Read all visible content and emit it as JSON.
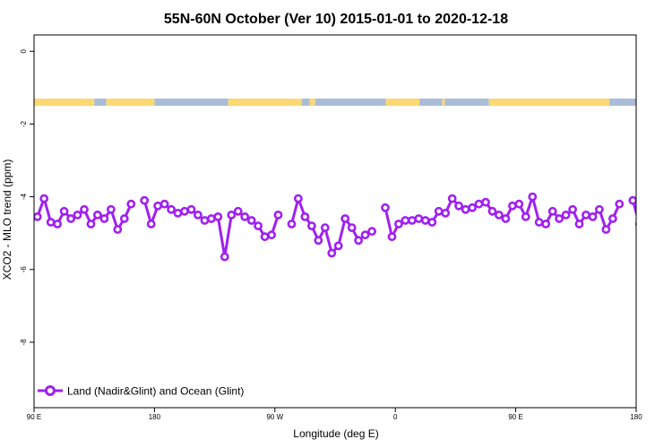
{
  "chart_data": {
    "type": "line",
    "title": "55N-60N October (Ver 10)   2015-01-01 to 2020-12-18",
    "xlabel": "Longitude (deg E)",
    "ylabel": "XCO2 - MLO trend (ppm)",
    "x_unit": "degrees east, unwrapped starting at 90 E (180 = 180, 270 = 90 W, 360 = 0, 450 = 90 E, 540 = 180)",
    "xlim": [
      90,
      540
    ],
    "ylim": [
      -9.8,
      0.45
    ],
    "x_ticks": [
      {
        "value": 90,
        "label": "90 E"
      },
      {
        "value": 180,
        "label": "180"
      },
      {
        "value": 270,
        "label": "90 W"
      },
      {
        "value": 360,
        "label": "0"
      },
      {
        "value": 450,
        "label": "90 E"
      },
      {
        "value": 540,
        "label": "180"
      }
    ],
    "y_ticks": [
      {
        "value": 0,
        "label": "0"
      },
      {
        "value": -2,
        "label": "-2"
      },
      {
        "value": -4,
        "label": "-4"
      },
      {
        "value": -6,
        "label": "-6"
      },
      {
        "value": -8,
        "label": "-8"
      }
    ],
    "grid": false,
    "legend_position": "bottom-left",
    "colors": {
      "series": "#a020f0",
      "ocean": "#a9bcd8",
      "land": "#fbd874"
    },
    "land_ocean_band": {
      "y_range": [
        -1.3,
        -1.5
      ],
      "description_colors": {
        "land": "#fbd874",
        "ocean": "#a9bcd8"
      },
      "land_segments_lon": [
        [
          90,
          135
        ],
        [
          144,
          180
        ],
        [
          235,
          290
        ],
        [
          296,
          300
        ],
        [
          353,
          378
        ],
        [
          395,
          397
        ],
        [
          430,
          520
        ]
      ],
      "ocean_segments_lon": [
        [
          135,
          144
        ],
        [
          180,
          235
        ],
        [
          290,
          296
        ],
        [
          300,
          353
        ],
        [
          378,
          395
        ],
        [
          397,
          430
        ],
        [
          520,
          540
        ]
      ]
    },
    "series": [
      {
        "name": "Land (Nadir&Glint) and Ocean (Glint)",
        "segments": [
          [
            [
              92.5,
              -4.55
            ],
            [
              97.5,
              -4.05
            ],
            [
              102.5,
              -4.7
            ],
            [
              107.5,
              -4.75
            ],
            [
              112.5,
              -4.4
            ],
            [
              117.5,
              -4.6
            ],
            [
              122.5,
              -4.5
            ],
            [
              127.5,
              -4.35
            ],
            [
              132.5,
              -4.75
            ],
            [
              137.5,
              -4.5
            ],
            [
              142.5,
              -4.6
            ],
            [
              147.5,
              -4.35
            ],
            [
              152.5,
              -4.9
            ],
            [
              157.5,
              -4.6
            ],
            [
              162.5,
              -4.2
            ]
          ],
          [
            [
              172.5,
              -4.1
            ],
            [
              177.5,
              -4.75
            ],
            [
              182.5,
              -4.25
            ],
            [
              187.5,
              -4.2
            ],
            [
              192.5,
              -4.35
            ],
            [
              197.5,
              -4.45
            ],
            [
              202.5,
              -4.4
            ],
            [
              207.5,
              -4.35
            ],
            [
              212.5,
              -4.5
            ],
            [
              217.5,
              -4.65
            ],
            [
              222.5,
              -4.6
            ]
          ],
          [
            [
              227.5,
              -4.55
            ],
            [
              232.5,
              -5.65
            ],
            [
              237.5,
              -4.5
            ],
            [
              242.5,
              -4.4
            ],
            [
              247.5,
              -4.55
            ],
            [
              252.5,
              -4.65
            ],
            [
              257.5,
              -4.8
            ],
            [
              262.5,
              -5.1
            ],
            [
              267.5,
              -5.05
            ],
            [
              272.5,
              -4.5
            ]
          ],
          [
            [
              282.5,
              -4.75
            ],
            [
              287.5,
              -4.05
            ],
            [
              292.5,
              -4.55
            ],
            [
              297.5,
              -4.8
            ],
            [
              302.5,
              -5.2
            ],
            [
              307.5,
              -4.85
            ],
            [
              312.5,
              -5.55
            ],
            [
              317.5,
              -5.35
            ],
            [
              322.5,
              -4.6
            ],
            [
              327.5,
              -4.85
            ],
            [
              332.5,
              -5.2
            ],
            [
              337.5,
              -5.05
            ]
          ],
          [
            [
              342.5,
              -4.95
            ]
          ],
          [
            [
              352.5,
              -4.3
            ],
            [
              357.5,
              -5.1
            ],
            [
              362.5,
              -4.75
            ],
            [
              367.5,
              -4.65
            ],
            [
              372.5,
              -4.65
            ],
            [
              377.5,
              -4.6
            ],
            [
              382.5,
              -4.65
            ],
            [
              387.5,
              -4.7
            ],
            [
              392.5,
              -4.4
            ],
            [
              397.5,
              -4.45
            ],
            [
              402.5,
              -4.05
            ],
            [
              407.5,
              -4.25
            ],
            [
              412.5,
              -4.35
            ],
            [
              417.5,
              -4.3
            ],
            [
              422.5,
              -4.2
            ],
            [
              427.5,
              -4.15
            ],
            [
              432.5,
              -4.4
            ],
            [
              437.5,
              -4.5
            ],
            [
              442.5,
              -4.6
            ],
            [
              447.5,
              -4.25
            ],
            [
              452.5,
              -4.2
            ],
            [
              457.5,
              -4.55
            ],
            [
              462.5,
              -4.0
            ],
            [
              467.5,
              -4.7
            ],
            [
              472.5,
              -4.75
            ],
            [
              477.5,
              -4.4
            ],
            [
              482.5,
              -4.6
            ],
            [
              487.5,
              -4.5
            ],
            [
              492.5,
              -4.35
            ],
            [
              497.5,
              -4.75
            ],
            [
              502.5,
              -4.5
            ],
            [
              507.5,
              -4.55
            ],
            [
              512.5,
              -4.35
            ],
            [
              517.5,
              -4.9
            ],
            [
              522.5,
              -4.6
            ],
            [
              527.5,
              -4.2
            ]
          ],
          [
            [
              537.5,
              -4.1
            ],
            [
              542.5,
              -4.75
            ]
          ]
        ]
      }
    ]
  }
}
